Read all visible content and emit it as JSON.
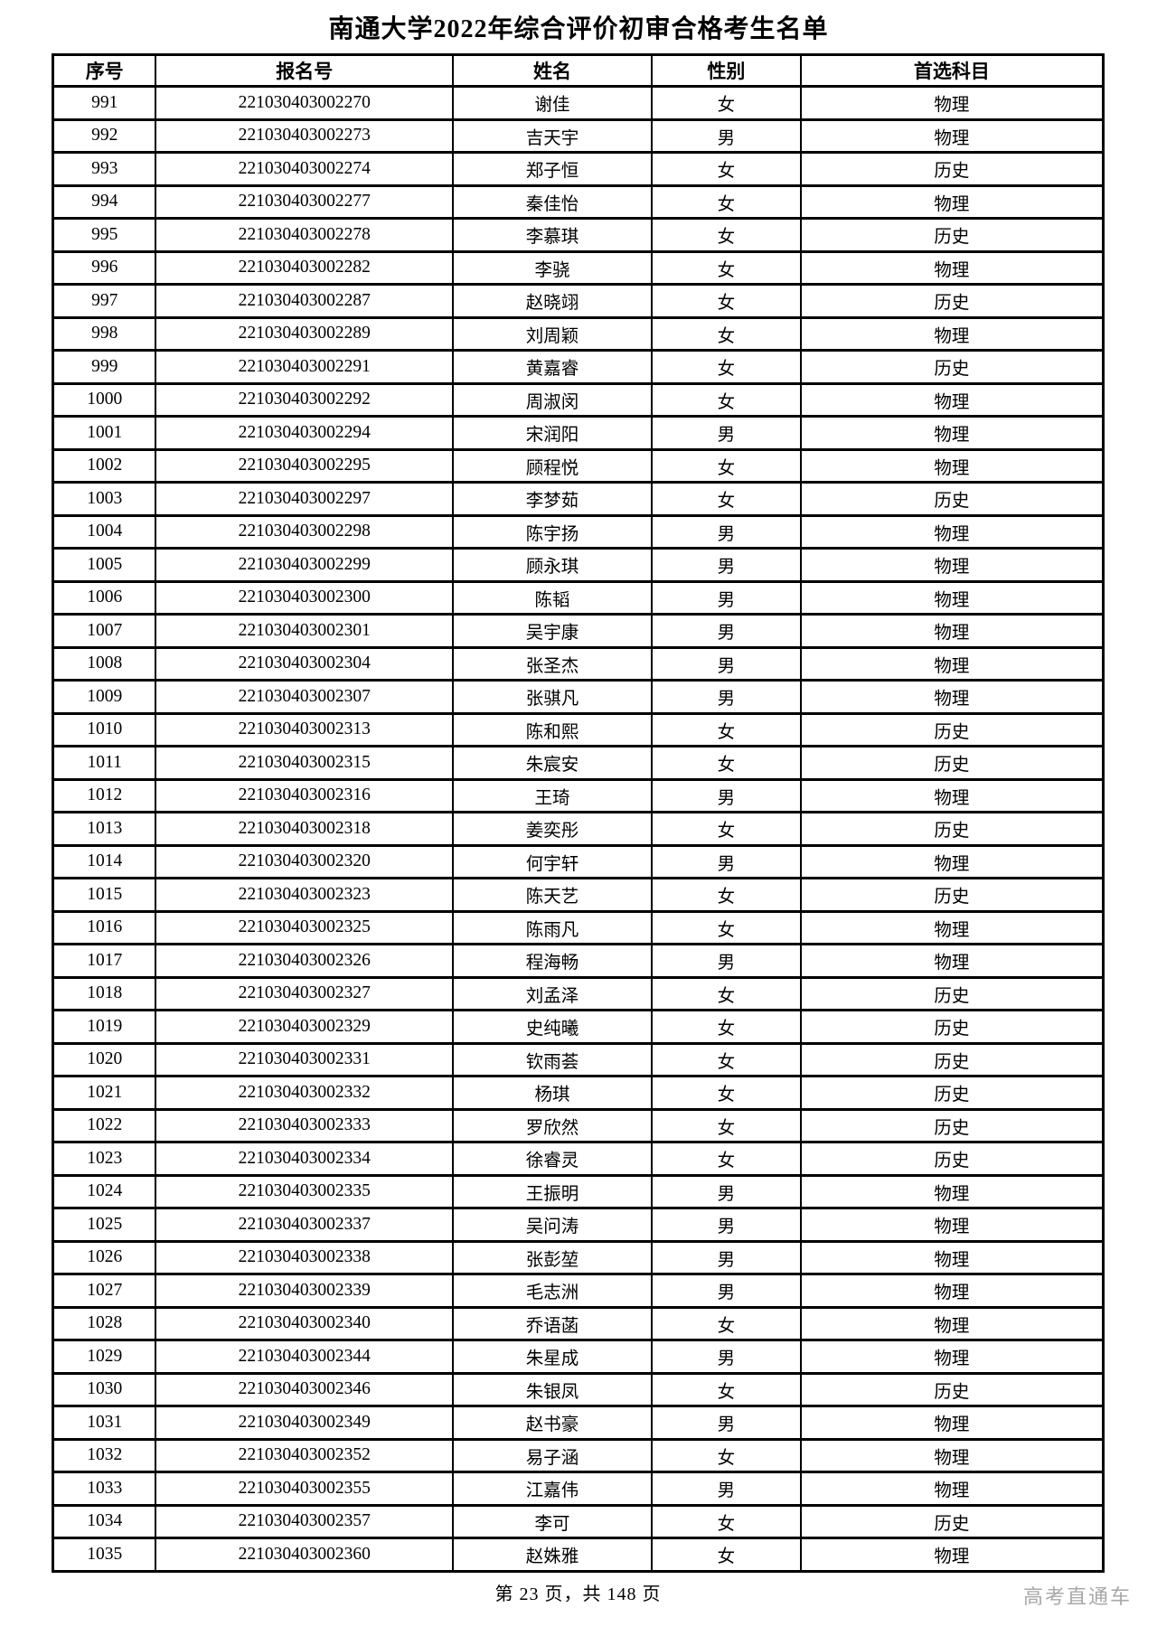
{
  "title": "南通大学2022年综合评价初审合格考生名单",
  "table": {
    "headers": [
      "序号",
      "报名号",
      "姓名",
      "性别",
      "首选科目"
    ],
    "rows": [
      [
        "991",
        "221030403002270",
        "谢佳",
        "女",
        "物理"
      ],
      [
        "992",
        "221030403002273",
        "吉天宇",
        "男",
        "物理"
      ],
      [
        "993",
        "221030403002274",
        "郑子恒",
        "女",
        "历史"
      ],
      [
        "994",
        "221030403002277",
        "秦佳怡",
        "女",
        "物理"
      ],
      [
        "995",
        "221030403002278",
        "李慕琪",
        "女",
        "历史"
      ],
      [
        "996",
        "221030403002282",
        "李骁",
        "女",
        "物理"
      ],
      [
        "997",
        "221030403002287",
        "赵晓翊",
        "女",
        "历史"
      ],
      [
        "998",
        "221030403002289",
        "刘周颖",
        "女",
        "物理"
      ],
      [
        "999",
        "221030403002291",
        "黄嘉睿",
        "女",
        "历史"
      ],
      [
        "1000",
        "221030403002292",
        "周淑闵",
        "女",
        "物理"
      ],
      [
        "1001",
        "221030403002294",
        "宋润阳",
        "男",
        "物理"
      ],
      [
        "1002",
        "221030403002295",
        "顾程悦",
        "女",
        "物理"
      ],
      [
        "1003",
        "221030403002297",
        "李梦茹",
        "女",
        "历史"
      ],
      [
        "1004",
        "221030403002298",
        "陈宇扬",
        "男",
        "物理"
      ],
      [
        "1005",
        "221030403002299",
        "顾永琪",
        "男",
        "物理"
      ],
      [
        "1006",
        "221030403002300",
        "陈韬",
        "男",
        "物理"
      ],
      [
        "1007",
        "221030403002301",
        "吴宇康",
        "男",
        "物理"
      ],
      [
        "1008",
        "221030403002304",
        "张圣杰",
        "男",
        "物理"
      ],
      [
        "1009",
        "221030403002307",
        "张骐凡",
        "男",
        "物理"
      ],
      [
        "1010",
        "221030403002313",
        "陈和熙",
        "女",
        "历史"
      ],
      [
        "1011",
        "221030403002315",
        "朱宸安",
        "女",
        "历史"
      ],
      [
        "1012",
        "221030403002316",
        "王琦",
        "男",
        "物理"
      ],
      [
        "1013",
        "221030403002318",
        "姜奕彤",
        "女",
        "历史"
      ],
      [
        "1014",
        "221030403002320",
        "何宇轩",
        "男",
        "物理"
      ],
      [
        "1015",
        "221030403002323",
        "陈天艺",
        "女",
        "历史"
      ],
      [
        "1016",
        "221030403002325",
        "陈雨凡",
        "女",
        "物理"
      ],
      [
        "1017",
        "221030403002326",
        "程海畅",
        "男",
        "物理"
      ],
      [
        "1018",
        "221030403002327",
        "刘孟泽",
        "女",
        "历史"
      ],
      [
        "1019",
        "221030403002329",
        "史纯曦",
        "女",
        "历史"
      ],
      [
        "1020",
        "221030403002331",
        "钦雨荟",
        "女",
        "历史"
      ],
      [
        "1021",
        "221030403002332",
        "杨琪",
        "女",
        "历史"
      ],
      [
        "1022",
        "221030403002333",
        "罗欣然",
        "女",
        "历史"
      ],
      [
        "1023",
        "221030403002334",
        "徐睿灵",
        "女",
        "历史"
      ],
      [
        "1024",
        "221030403002335",
        "王振明",
        "男",
        "物理"
      ],
      [
        "1025",
        "221030403002337",
        "吴问涛",
        "男",
        "物理"
      ],
      [
        "1026",
        "221030403002338",
        "张彭堃",
        "男",
        "物理"
      ],
      [
        "1027",
        "221030403002339",
        "毛志洲",
        "男",
        "物理"
      ],
      [
        "1028",
        "221030403002340",
        "乔语菡",
        "女",
        "物理"
      ],
      [
        "1029",
        "221030403002344",
        "朱星成",
        "男",
        "物理"
      ],
      [
        "1030",
        "221030403002346",
        "朱银凤",
        "女",
        "历史"
      ],
      [
        "1031",
        "221030403002349",
        "赵书豪",
        "男",
        "物理"
      ],
      [
        "1032",
        "221030403002352",
        "易子涵",
        "女",
        "物理"
      ],
      [
        "1033",
        "221030403002355",
        "江嘉伟",
        "男",
        "物理"
      ],
      [
        "1034",
        "221030403002357",
        "李可",
        "女",
        "历史"
      ],
      [
        "1035",
        "221030403002360",
        "赵姝雅",
        "女",
        "物理"
      ]
    ]
  },
  "footer": {
    "page_info": "第 23 页，共 148 页",
    "watermark": "高考直通车"
  },
  "colors": {
    "text": "#000000",
    "border": "#000000",
    "watermark": "#a8a8a8"
  }
}
